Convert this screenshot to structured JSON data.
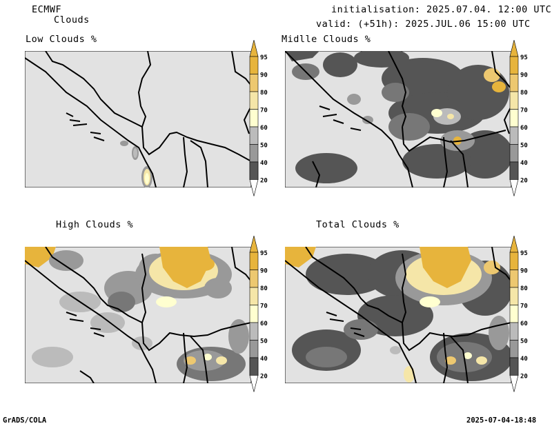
{
  "header": {
    "model": "ECMWF",
    "product": "Clouds",
    "init": "initialisation: 2025.07.04. 12:00 UTC",
    "valid": "valid: (+51h): 2025.JUL.06 15:00 UTC"
  },
  "panels": [
    {
      "id": "low",
      "title": "Low Clouds %"
    },
    {
      "id": "mid",
      "title": "Midlle Clouds %"
    },
    {
      "id": "high",
      "title": "High Clouds %"
    },
    {
      "id": "total",
      "title": "Total Clouds %"
    }
  ],
  "colorbar": {
    "levels": [
      "95",
      "90",
      "80",
      "70",
      "60",
      "50",
      "40",
      "20"
    ],
    "colors": {
      "c20": "#555555",
      "c40": "#777777",
      "c50": "#999999",
      "c60": "#bbbbbb",
      "c70": "#ffffd0",
      "c80": "#f5e6a8",
      "c90": "#edc870",
      "c95": "#e7b43c",
      "background": "#e2e2e2"
    }
  },
  "footer": {
    "left": "GrADS/COLA",
    "right": "2025-07-04-18:48"
  }
}
